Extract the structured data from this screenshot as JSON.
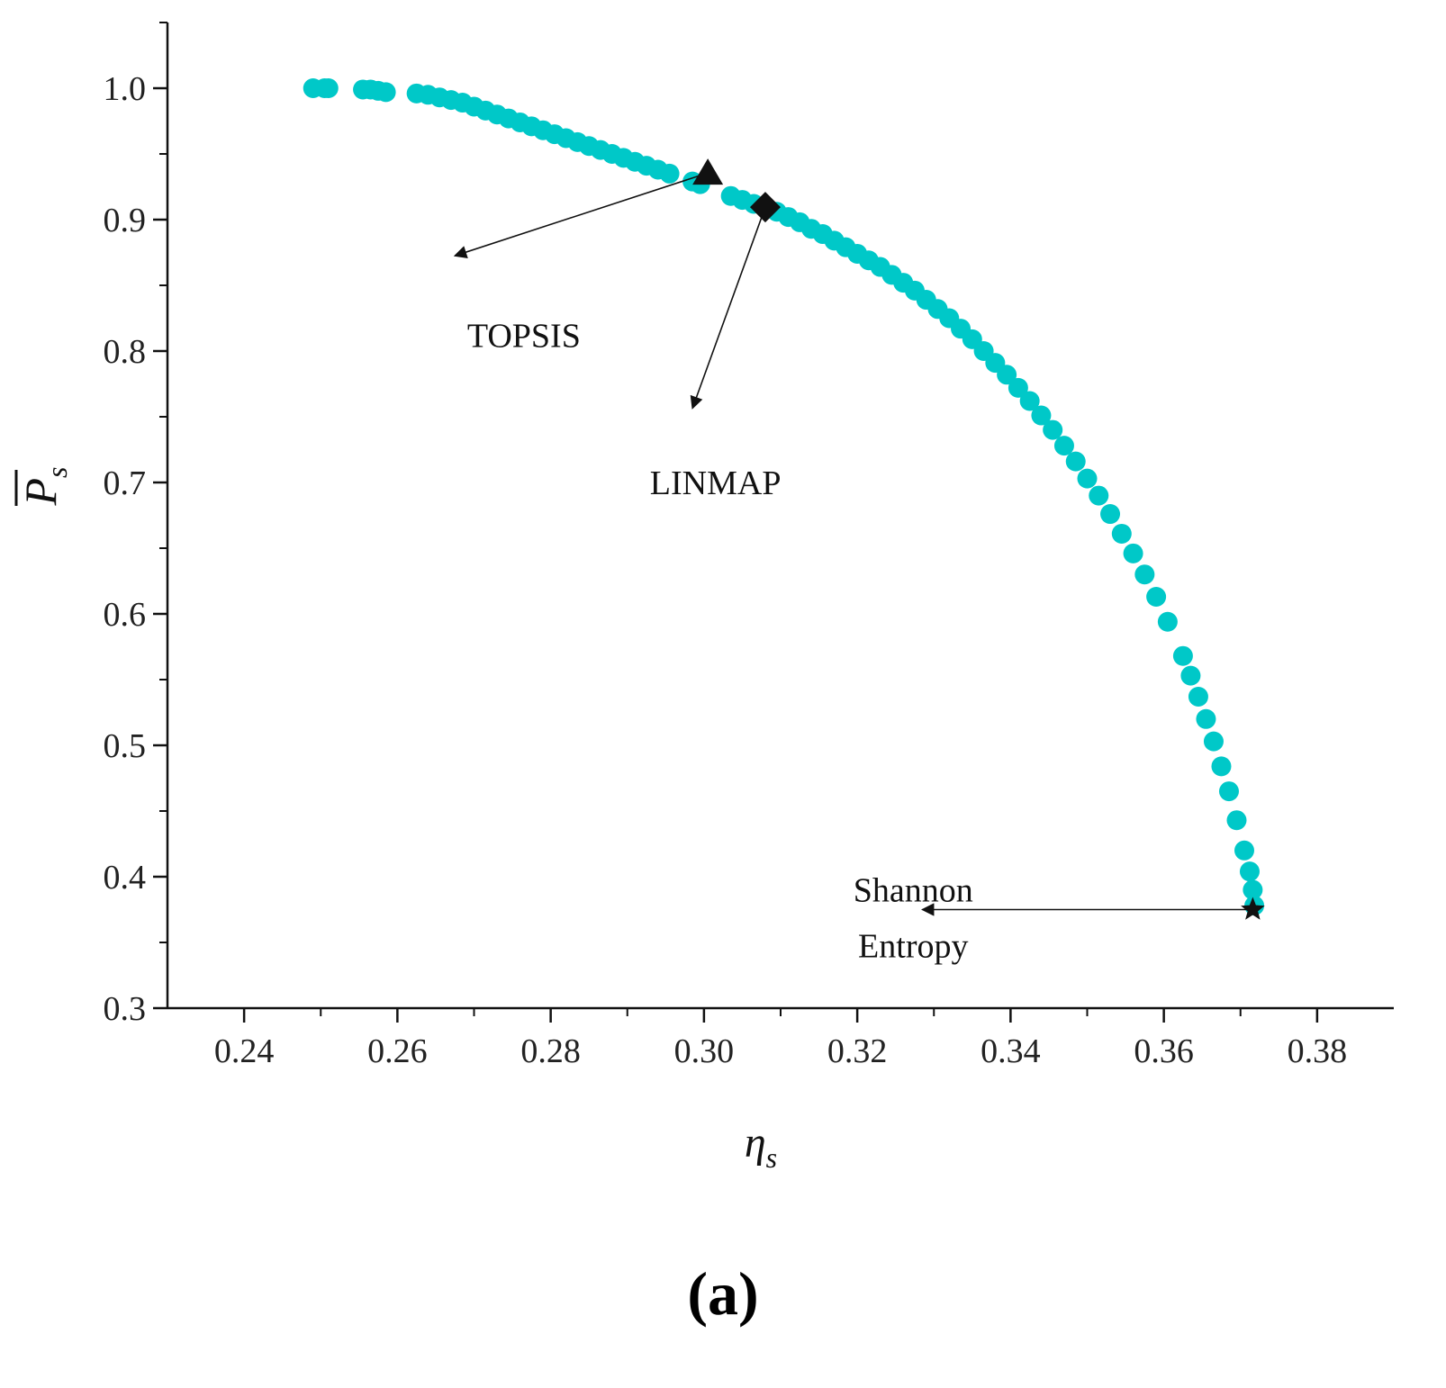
{
  "chart_data": {
    "type": "scatter",
    "title": "",
    "xlabel": {
      "main": "η",
      "sub": "s"
    },
    "ylabel": {
      "main": "P",
      "sub": "s",
      "overbar": true
    },
    "xlim": [
      0.23,
      0.39
    ],
    "ylim": [
      0.3,
      1.05
    ],
    "xticks": [
      0.24,
      0.26,
      0.28,
      0.3,
      0.32,
      0.34,
      0.36,
      0.38
    ],
    "xtick_labels": [
      "0.24",
      "0.26",
      "0.28",
      "0.30",
      "0.32",
      "0.34",
      "0.36",
      "0.38"
    ],
    "yticks": [
      0.3,
      0.4,
      0.5,
      0.6,
      0.7,
      0.8,
      0.9,
      1.0
    ],
    "ytick_labels": [
      "0.3",
      "0.4",
      "0.5",
      "0.6",
      "0.7",
      "0.8",
      "0.9",
      "1.0"
    ],
    "grid": false,
    "series": [
      {
        "marker_color": "#00c8c8",
        "x": [
          0.249,
          0.2505,
          0.251,
          0.2555,
          0.2565,
          0.2575,
          0.2585,
          0.2625,
          0.264,
          0.2655,
          0.267,
          0.2685,
          0.27,
          0.2715,
          0.273,
          0.2745,
          0.276,
          0.2775,
          0.279,
          0.2805,
          0.282,
          0.2835,
          0.285,
          0.2865,
          0.288,
          0.2895,
          0.291,
          0.2925,
          0.294,
          0.2955,
          0.2985,
          0.2995,
          0.3035,
          0.305,
          0.3065,
          0.3095,
          0.311,
          0.3125,
          0.314,
          0.3155,
          0.317,
          0.3185,
          0.32,
          0.3215,
          0.323,
          0.3245,
          0.326,
          0.3275,
          0.329,
          0.3305,
          0.332,
          0.3335,
          0.335,
          0.3365,
          0.338,
          0.3395,
          0.341,
          0.3425,
          0.344,
          0.3455,
          0.347,
          0.3485,
          0.35,
          0.3515,
          0.353,
          0.3545,
          0.356,
          0.3575,
          0.359,
          0.3605,
          0.3625,
          0.3635,
          0.3645,
          0.3655,
          0.3665,
          0.3675,
          0.3685,
          0.3695,
          0.3705,
          0.3712,
          0.3716,
          0.3718
        ],
        "y": [
          1.0,
          1.0,
          1.0,
          0.999,
          0.999,
          0.998,
          0.997,
          0.996,
          0.995,
          0.993,
          0.991,
          0.989,
          0.986,
          0.983,
          0.98,
          0.977,
          0.974,
          0.971,
          0.968,
          0.965,
          0.962,
          0.959,
          0.956,
          0.953,
          0.95,
          0.947,
          0.944,
          0.941,
          0.938,
          0.935,
          0.929,
          0.927,
          0.918,
          0.915,
          0.912,
          0.906,
          0.902,
          0.898,
          0.893,
          0.889,
          0.884,
          0.879,
          0.874,
          0.869,
          0.864,
          0.858,
          0.852,
          0.846,
          0.839,
          0.832,
          0.825,
          0.817,
          0.809,
          0.8,
          0.791,
          0.782,
          0.772,
          0.762,
          0.751,
          0.74,
          0.728,
          0.716,
          0.703,
          0.69,
          0.676,
          0.661,
          0.646,
          0.63,
          0.613,
          0.594,
          0.568,
          0.553,
          0.537,
          0.52,
          0.503,
          0.484,
          0.465,
          0.443,
          0.42,
          0.404,
          0.39,
          0.378
        ]
      }
    ],
    "highlights": [
      {
        "label": "TOPSIS",
        "marker": "triangle",
        "x": 0.3005,
        "y": 0.9355,
        "label_x": 0.2765,
        "label_y": 0.812,
        "arrow_to_x": 0.2675,
        "arrow_to_y": 0.8725
      },
      {
        "label": "LINMAP",
        "marker": "diamond",
        "x": 0.308,
        "y": 0.9095,
        "label_x": 0.3015,
        "label_y": 0.7,
        "arrow_to_x": 0.2985,
        "arrow_to_y": 0.7565
      },
      {
        "label_lines": [
          "Shannon",
          "Entropy"
        ],
        "marker": "star",
        "x": 0.3716,
        "y": 0.375,
        "label_x": 0.3273,
        "label_y": 0.39,
        "label_y2": 0.3475,
        "arrow_to_x": 0.3285,
        "arrow_to_y": 0.375
      }
    ]
  },
  "caption": "(a)"
}
